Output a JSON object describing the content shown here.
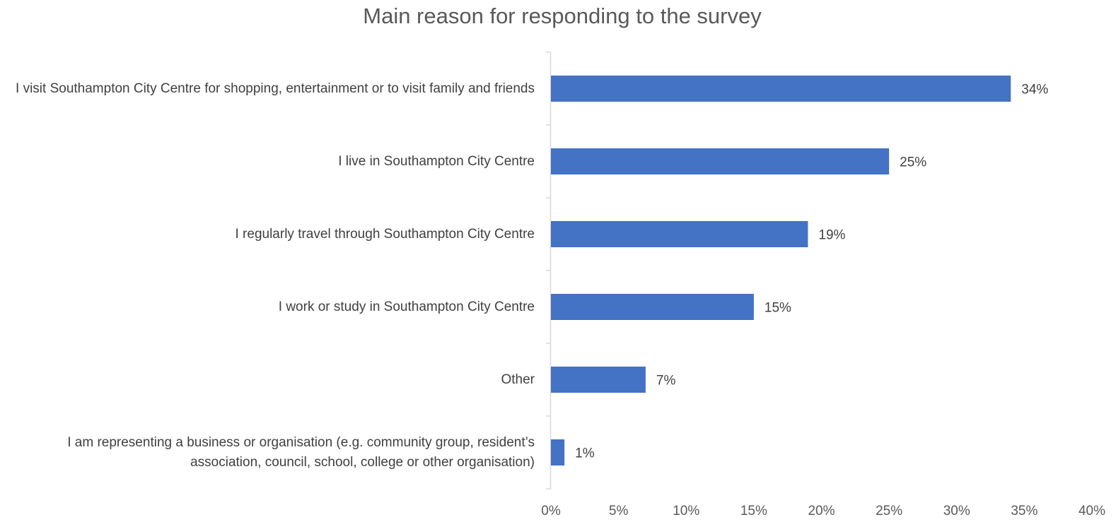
{
  "chart_data": {
    "type": "bar",
    "orientation": "horizontal",
    "title": "Main reason for responding to the survey",
    "xlabel": "",
    "ylabel": "",
    "categories": [
      "I visit Southampton City Centre for shopping, entertainment or to visit family and friends",
      "I live in Southampton City Centre",
      "I regularly travel through Southampton City Centre",
      "I work or study in Southampton City Centre",
      "Other",
      "I am representing a business or organisation (e.g. community group, resident’s association, council, school, college or other organisation)"
    ],
    "values": [
      34,
      25,
      19,
      15,
      7,
      1
    ],
    "data_labels": [
      "34%",
      "25%",
      "19%",
      "15%",
      "7%",
      "1%"
    ],
    "xlim": [
      0,
      40
    ],
    "x_ticks": [
      "0%",
      "5%",
      "10%",
      "15%",
      "20%",
      "25%",
      "30%",
      "35%",
      "40%"
    ],
    "grid": false,
    "legend": "none",
    "bar_color": "#4472C4"
  }
}
